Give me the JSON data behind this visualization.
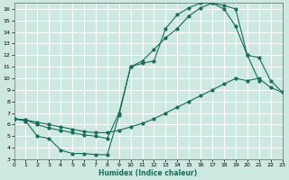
{
  "xlabel": "Humidex (Indice chaleur)",
  "bg_color": "#cce8e0",
  "grid_color": "#ffffff",
  "line_color": "#1a6b5a",
  "xlim": [
    0,
    23
  ],
  "ylim": [
    3,
    16.5
  ],
  "xticks": [
    0,
    1,
    2,
    3,
    4,
    5,
    6,
    7,
    8,
    9,
    10,
    11,
    12,
    13,
    14,
    15,
    16,
    17,
    18,
    19,
    20,
    21,
    22,
    23
  ],
  "yticks": [
    3,
    4,
    5,
    6,
    7,
    8,
    9,
    10,
    11,
    12,
    13,
    14,
    15,
    16
  ],
  "curve1_x": [
    0,
    1,
    2,
    3,
    4,
    5,
    6,
    7,
    8,
    9,
    10,
    11,
    12,
    13,
    14,
    15,
    16,
    17,
    18,
    19,
    20,
    21
  ],
  "curve1_y": [
    6.5,
    6.3,
    5.0,
    4.8,
    3.8,
    3.5,
    3.5,
    3.4,
    3.4,
    6.8,
    11.0,
    11.3,
    11.5,
    14.3,
    15.5,
    16.1,
    16.5,
    16.5,
    16.3,
    16.0,
    12.0,
    9.8
  ],
  "curve2_x": [
    0,
    1,
    2,
    3,
    4,
    5,
    6,
    7,
    8,
    9,
    10,
    11,
    12,
    13,
    14,
    15,
    16,
    17,
    18,
    19,
    20,
    21,
    22,
    23
  ],
  "curve2_y": [
    6.5,
    6.4,
    6.2,
    6.0,
    5.8,
    5.6,
    5.4,
    5.3,
    5.3,
    5.5,
    5.8,
    6.1,
    6.5,
    7.0,
    7.5,
    8.0,
    8.5,
    9.0,
    9.5,
    10.0,
    9.8,
    10.0,
    9.2,
    8.8
  ],
  "curve3_x": [
    0,
    1,
    2,
    3,
    4,
    5,
    6,
    7,
    8,
    9,
    10,
    11,
    12,
    13,
    14,
    15,
    16,
    17,
    18,
    19,
    20,
    21,
    22,
    23
  ],
  "curve3_y": [
    6.5,
    6.4,
    6.0,
    5.7,
    5.5,
    5.3,
    5.1,
    5.0,
    4.8,
    7.0,
    11.0,
    11.5,
    12.5,
    13.5,
    14.3,
    15.4,
    16.1,
    16.5,
    16.0,
    14.5,
    12.0,
    11.8,
    9.8,
    8.8
  ]
}
